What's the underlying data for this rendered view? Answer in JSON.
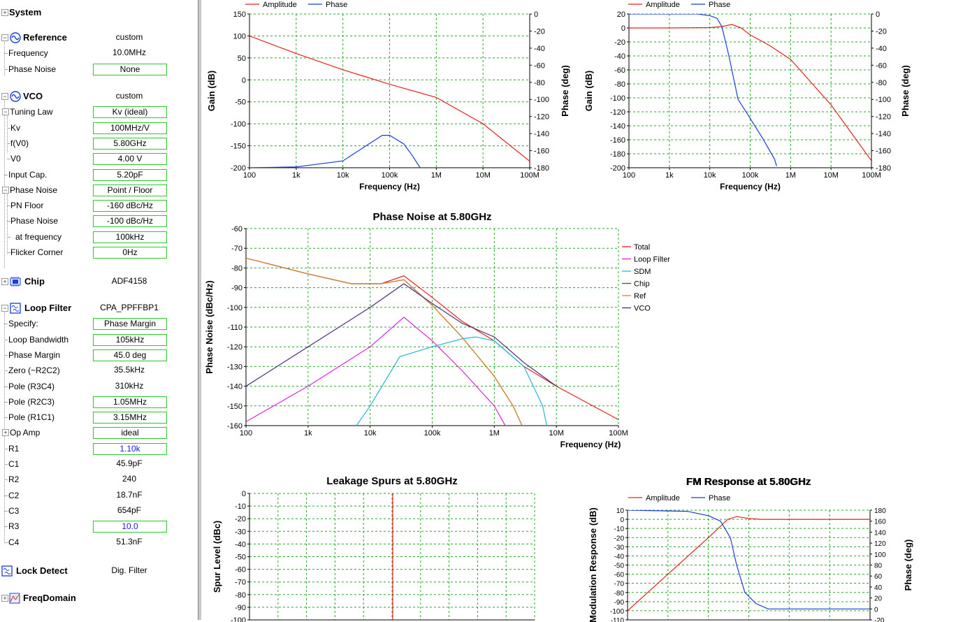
{
  "tree": {
    "system": {
      "label": "System"
    },
    "reference": {
      "label": "Reference",
      "value": "custom",
      "items": [
        {
          "label": "Frequency",
          "value": "10.0MHz"
        },
        {
          "label": "Phase Noise",
          "value": "None"
        }
      ]
    },
    "vco": {
      "label": "VCO",
      "value": "custom",
      "tuning": {
        "label": "Tuning Law",
        "value": "Kv (ideal)",
        "items": [
          {
            "label": "Kv",
            "value": "100MHz/V"
          },
          {
            "label": "f(V0)",
            "value": "5.80GHz"
          },
          {
            "label": "V0",
            "value": "4.00 V"
          }
        ]
      },
      "input_cap": {
        "label": "Input Cap.",
        "value": "5.20pF"
      },
      "phase_noise": {
        "label": "Phase Noise",
        "value": "Point / Floor",
        "items": [
          {
            "label": "PN Floor",
            "value": "-160 dBc/Hz"
          },
          {
            "label": "Phase Noise",
            "value": "-100 dBc/Hz"
          },
          {
            "label": "at frequency",
            "value": "100kHz"
          },
          {
            "label": "Flicker Corner",
            "value": "0Hz"
          }
        ]
      }
    },
    "chip": {
      "label": "Chip",
      "value": "ADF4158"
    },
    "loop_filter": {
      "label": "Loop Filter",
      "value": "CPA_PPFFBP1",
      "items": [
        {
          "label": "Specify:",
          "value": "Phase Margin"
        },
        {
          "label": "Loop Bandwidth",
          "value": "105kHz"
        },
        {
          "label": "Phase Margin",
          "value": "45.0 deg"
        },
        {
          "label": "Zero (~R2C2)",
          "value": "35.5kHz"
        },
        {
          "label": "Pole (R3C4)",
          "value": "310kHz"
        },
        {
          "label": "Pole (R2C3)",
          "value": "1.05MHz"
        },
        {
          "label": "Pole (R1C1)",
          "value": "3.15MHz"
        },
        {
          "label": "Op Amp",
          "value": "ideal"
        },
        {
          "label": "R1",
          "value": "1.10k"
        },
        {
          "label": "C1",
          "value": "45.9pF"
        },
        {
          "label": "R2",
          "value": "240"
        },
        {
          "label": "C2",
          "value": "18.7nF"
        },
        {
          "label": "C3",
          "value": "654pF"
        },
        {
          "label": "R3",
          "value": "10.0"
        },
        {
          "label": "C4",
          "value": "51.3nF"
        }
      ]
    },
    "lock_detect": {
      "label": "Lock Detect",
      "value": "Dig. Filter"
    },
    "freq_domain": {
      "label": "FreqDomain"
    }
  },
  "colors": {
    "amplitude": "#e8201a",
    "phase": "#1a3cdc",
    "grid": "#2aa82a",
    "box_border": "#2ec82e",
    "blue_value": "#1a1af0"
  },
  "chart_data": [
    {
      "id": "open-loop",
      "type": "line",
      "title": "",
      "xlabel": "Frequency (Hz)",
      "ylabel": "Gain (dB)",
      "y2label": "Phase (deg)",
      "xscale": "log",
      "xlim": [
        100,
        100000000
      ],
      "ylim": [
        -200,
        150
      ],
      "y2lim": [
        -180,
        0
      ],
      "xticks": [
        "100",
        "1k",
        "10k",
        "100k",
        "1M",
        "10M",
        "100M"
      ],
      "yticks": [
        "150",
        "100",
        "50",
        "0",
        "-50",
        "-100",
        "-150",
        "-200"
      ],
      "y2ticks": [
        "0",
        "-20",
        "-40",
        "-60",
        "-80",
        "-100",
        "-120",
        "-140",
        "-160",
        "-180"
      ],
      "legend": [
        "Amplitude",
        "Phase"
      ],
      "series": [
        {
          "name": "Amplitude",
          "axis": "y",
          "x": [
            100,
            1000,
            10000,
            100000,
            1000000,
            10000000,
            100000000
          ],
          "values": [
            100,
            60,
            23,
            -10,
            -40,
            -100,
            -185
          ]
        },
        {
          "name": "Phase",
          "axis": "y2",
          "x": [
            100,
            1000,
            10000,
            30000,
            70000,
            100000,
            200000,
            300000,
            450000
          ],
          "values": [
            -180,
            -179,
            -172,
            -155,
            -142,
            -142,
            -152,
            -165,
            -180
          ]
        }
      ]
    },
    {
      "id": "closed-loop",
      "type": "line",
      "title": "",
      "xlabel": "Frequency (Hz)",
      "ylabel": "Gain (dB)",
      "y2label": "Phase (deg)",
      "xscale": "log",
      "xlim": [
        100,
        100000000
      ],
      "ylim": [
        -200,
        20
      ],
      "y2lim": [
        -180,
        0
      ],
      "xticks": [
        "100",
        "1k",
        "10k",
        "100k",
        "1M",
        "10M",
        "100M"
      ],
      "yticks": [
        "20",
        "0",
        "-20",
        "-40",
        "-60",
        "-80",
        "-100",
        "-120",
        "-140",
        "-160",
        "-180",
        "-200"
      ],
      "y2ticks": [
        "0",
        "-20",
        "-40",
        "-60",
        "-80",
        "-100",
        "-120",
        "-140",
        "-160",
        "-180"
      ],
      "legend": [
        "Amplitude",
        "Phase"
      ],
      "series": [
        {
          "name": "Amplitude",
          "axis": "y",
          "x": [
            100,
            1000,
            10000,
            20000,
            35000,
            60000,
            100000,
            300000,
            1000000,
            10000000,
            100000000
          ],
          "values": [
            0,
            0,
            0.5,
            2,
            5,
            0,
            -10,
            -25,
            -45,
            -110,
            -190
          ]
        },
        {
          "name": "Phase",
          "axis": "y2",
          "x": [
            100,
            5000,
            10000,
            15000,
            20000,
            30000,
            50000,
            80000,
            200000,
            400000,
            450000
          ],
          "values": [
            0,
            0,
            -2,
            -5,
            -15,
            -50,
            -100,
            -115,
            -145,
            -170,
            -178
          ]
        }
      ]
    },
    {
      "id": "phase-noise",
      "type": "line",
      "title": "Phase Noise at 5.80GHz",
      "xlabel": "Frequency (Hz)",
      "ylabel": "Phase Noise (dBc/Hz)",
      "xscale": "log",
      "xlim": [
        100,
        100000000
      ],
      "ylim": [
        -160,
        -60
      ],
      "xticks": [
        "100",
        "1k",
        "10k",
        "100k",
        "1M",
        "10M",
        "100M"
      ],
      "yticks": [
        "-60",
        "-70",
        "-80",
        "-90",
        "-100",
        "-110",
        "-120",
        "-130",
        "-140",
        "-150",
        "-160"
      ],
      "legend_position": "right",
      "series": [
        {
          "name": "Total",
          "color": "#e8201a",
          "x": [
            100,
            1000,
            5000,
            15000,
            35000,
            100000,
            300000,
            1000000,
            3000000,
            10000000,
            100000000
          ],
          "values": [
            -75,
            -83,
            -88,
            -88,
            -84,
            -95,
            -107,
            -117,
            -130,
            -140,
            -157
          ]
        },
        {
          "name": "Loop Filter",
          "color": "#e020e0",
          "x": [
            100,
            1000,
            10000,
            35000,
            100000,
            300000,
            1000000,
            1500000
          ],
          "values": [
            -158,
            -140,
            -120,
            -105,
            -117,
            -132,
            -150,
            -160
          ]
        },
        {
          "name": "SDM",
          "color": "#20b8d8",
          "x": [
            6000,
            10000,
            30000,
            100000,
            300000,
            500000,
            1000000,
            3000000,
            6000000,
            7000000
          ],
          "values": [
            -160,
            -150,
            -125,
            -120,
            -116,
            -115,
            -117,
            -130,
            -150,
            -160
          ]
        },
        {
          "name": "Chip",
          "color": "#1a7a1a",
          "x": [
            100,
            1000,
            5000,
            15000,
            35000,
            100000,
            300000,
            1000000,
            2000000,
            2800000
          ],
          "values": [
            -75,
            -83,
            -88,
            -88,
            -86,
            -99,
            -115,
            -135,
            -150,
            -160
          ]
        },
        {
          "name": "Ref",
          "color": "#e08030",
          "x": [
            100,
            1000,
            5000,
            15000,
            35000,
            100000,
            300000,
            1000000,
            2000000,
            2800000
          ],
          "values": [
            -75,
            -83,
            -88,
            -88,
            -86,
            -99,
            -115,
            -135,
            -150,
            -160
          ]
        },
        {
          "name": "VCO",
          "color": "#4a2a7a",
          "x": [
            100,
            1000,
            10000,
            35000,
            100000,
            300000,
            1000000,
            3000000,
            10000000
          ],
          "values": [
            -140,
            -120,
            -100,
            -88,
            -98,
            -108,
            -115,
            -128,
            -140
          ]
        }
      ]
    },
    {
      "id": "leakage-spurs",
      "type": "bar",
      "title": "Leakage Spurs at 5.80GHz",
      "ylabel": "Spur Level (dBc)",
      "ylim": [
        -100,
        0
      ],
      "yticks": [
        "0",
        "-10",
        "-20",
        "-30",
        "-40",
        "-50",
        "-60",
        "-70",
        "-80",
        "-90",
        "-100"
      ]
    },
    {
      "id": "fm-response",
      "type": "line",
      "title": "FM Response at 5.80GHz",
      "ylabel": "Modulation Response (dB)",
      "y2label": "Phase (deg)",
      "xscale": "log",
      "xlim": [
        100,
        100000000
      ],
      "ylim": [
        -110,
        10
      ],
      "y2lim": [
        -20,
        180
      ],
      "yticks": [
        "10",
        "0",
        "-10",
        "-20",
        "-30",
        "-40",
        "-50",
        "-60",
        "-70",
        "-80",
        "-90",
        "-100",
        "-110"
      ],
      "y2ticks": [
        "180",
        "160",
        "140",
        "120",
        "100",
        "80",
        "60",
        "40",
        "20",
        "0",
        "-20"
      ],
      "legend": [
        "Amplitude",
        "Phase"
      ],
      "series": [
        {
          "name": "Amplitude",
          "axis": "y",
          "x": [
            100,
            1000,
            10000,
            30000,
            50000,
            100000,
            200000,
            1000000,
            100000000
          ],
          "values": [
            -100,
            -60,
            -20,
            0,
            3,
            1,
            0,
            0,
            0
          ]
        },
        {
          "name": "Phase",
          "axis": "y2",
          "x": [
            100,
            3000,
            10000,
            20000,
            35000,
            50000,
            80000,
            150000,
            300000,
            100000000
          ],
          "values": [
            180,
            178,
            170,
            160,
            130,
            80,
            30,
            10,
            0,
            0
          ]
        }
      ]
    }
  ]
}
